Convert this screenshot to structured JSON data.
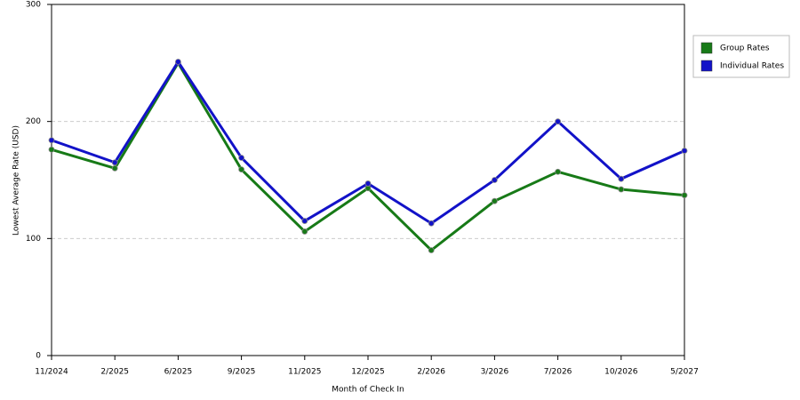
{
  "chart_data": {
    "type": "line",
    "x_label": "Month of Check In",
    "y_label": "Lowest Average Rate (USD)",
    "categories": [
      "11/2024",
      "2/2025",
      "6/2025",
      "9/2025",
      "11/2025",
      "12/2025",
      "2/2026",
      "3/2026",
      "7/2026",
      "10/2026",
      "5/2027"
    ],
    "series": [
      {
        "name": "Group Rates",
        "color": "#177a17",
        "values": [
          176,
          160,
          250,
          159,
          106,
          143,
          90,
          132,
          157,
          142,
          137
        ]
      },
      {
        "name": "Individual Rates",
        "color": "#1212c8",
        "values": [
          184,
          165,
          251,
          169,
          115,
          147,
          113,
          150,
          200,
          151,
          175
        ]
      }
    ],
    "ylim": [
      0,
      300
    ],
    "yticks": [
      0,
      100,
      200,
      300
    ],
    "grid": true,
    "legend": "right"
  }
}
